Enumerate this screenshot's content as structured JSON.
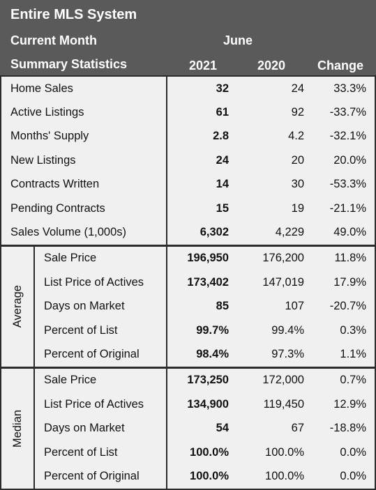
{
  "header": {
    "title": "Entire MLS System",
    "period_label": "Current Month",
    "period": "June",
    "section_label": "Summary Statistics",
    "columns": [
      "2021",
      "2020",
      "Change"
    ]
  },
  "sections": [
    {
      "rows": [
        {
          "label": "Home Sales",
          "values": [
            "32",
            "24",
            "33.3%"
          ]
        },
        {
          "label": "Active Listings",
          "values": [
            "61",
            "92",
            "-33.7%"
          ]
        },
        {
          "label": "Months' Supply",
          "values": [
            "2.8",
            "4.2",
            "-32.1%"
          ]
        },
        {
          "label": "New Listings",
          "values": [
            "24",
            "20",
            "20.0%"
          ]
        },
        {
          "label": "Contracts Written",
          "values": [
            "14",
            "30",
            "-53.3%"
          ]
        },
        {
          "label": "Pending Contracts",
          "values": [
            "15",
            "19",
            "-21.1%"
          ]
        },
        {
          "label": "Sales Volume (1,000s)",
          "values": [
            "6,302",
            "4,229",
            "49.0%"
          ]
        }
      ]
    },
    {
      "group": "Average",
      "rows": [
        {
          "label": "Sale Price",
          "values": [
            "196,950",
            "176,200",
            "11.8%"
          ]
        },
        {
          "label": "List Price of Actives",
          "values": [
            "173,402",
            "147,019",
            "17.9%"
          ]
        },
        {
          "label": "Days on Market",
          "values": [
            "85",
            "107",
            "-20.7%"
          ]
        },
        {
          "label": "Percent of List",
          "values": [
            "99.7%",
            "99.4%",
            "0.3%"
          ]
        },
        {
          "label": "Percent of Original",
          "values": [
            "98.4%",
            "97.3%",
            "1.1%"
          ]
        }
      ]
    },
    {
      "group": "Median",
      "rows": [
        {
          "label": "Sale Price",
          "values": [
            "173,250",
            "172,000",
            "0.7%"
          ]
        },
        {
          "label": "List Price of Actives",
          "values": [
            "134,900",
            "119,450",
            "12.9%"
          ]
        },
        {
          "label": "Days on Market",
          "values": [
            "54",
            "67",
            "-18.8%"
          ]
        },
        {
          "label": "Percent of List",
          "values": [
            "100.0%",
            "100.0%",
            "0.0%"
          ]
        },
        {
          "label": "Percent of Original",
          "values": [
            "100.0%",
            "100.0%",
            "0.0%"
          ]
        }
      ]
    }
  ]
}
